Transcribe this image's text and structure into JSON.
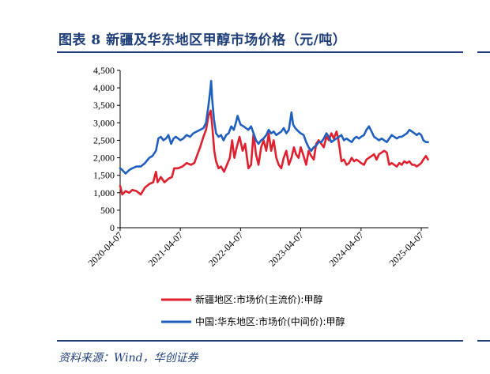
{
  "page": {
    "title": "图表 8 新疆及华东地区甲醇市场价格（元/吨）",
    "source": "资料来源：Wind，华创证券"
  },
  "chart_data": {
    "type": "line",
    "title": "",
    "xlabel": "",
    "ylabel": "",
    "ylim": [
      0,
      4500
    ],
    "yticks": [
      0,
      500,
      1000,
      1500,
      2000,
      2500,
      3000,
      3500,
      4000,
      4500
    ],
    "ytick_labels": [
      "0",
      "500",
      "1,000",
      "1,500",
      "2,000",
      "2,500",
      "3,000",
      "3,500",
      "4,000",
      "4,500"
    ],
    "xlim": [
      "2020-04-07",
      "2025-05-20"
    ],
    "xticks": [
      "2020-04-07",
      "2021-04-07",
      "2022-04-07",
      "2023-04-07",
      "2024-04-07",
      "2025-04-07"
    ],
    "grid": false,
    "legend": "bottom",
    "series": [
      {
        "name": "新疆地区:市场价(主流价):甲醇",
        "color": "#e0202e",
        "points": [
          [
            "2020-04-07",
            1200
          ],
          [
            "2020-04-20",
            950
          ],
          [
            "2020-05-10",
            1050
          ],
          [
            "2020-06-01",
            1000
          ],
          [
            "2020-06-20",
            1080
          ],
          [
            "2020-07-15",
            1050
          ],
          [
            "2020-08-10",
            950
          ],
          [
            "2020-09-05",
            1150
          ],
          [
            "2020-10-01",
            1250
          ],
          [
            "2020-10-25",
            1300
          ],
          [
            "2020-11-10",
            1600
          ],
          [
            "2020-11-20",
            1300
          ],
          [
            "2020-12-10",
            1450
          ],
          [
            "2021-01-01",
            1300
          ],
          [
            "2021-01-25",
            1400
          ],
          [
            "2021-02-15",
            1450
          ],
          [
            "2021-03-01",
            1700
          ],
          [
            "2021-03-25",
            1700
          ],
          [
            "2021-04-20",
            1750
          ],
          [
            "2021-05-15",
            1850
          ],
          [
            "2021-06-10",
            1800
          ],
          [
            "2021-07-01",
            1850
          ],
          [
            "2021-07-20",
            2100
          ],
          [
            "2021-08-05",
            2300
          ],
          [
            "2021-08-25",
            2600
          ],
          [
            "2021-09-10",
            2800
          ],
          [
            "2021-09-25",
            3200
          ],
          [
            "2021-10-08",
            3350
          ],
          [
            "2021-10-18",
            2900
          ],
          [
            "2021-10-30",
            2200
          ],
          [
            "2021-11-10",
            1900
          ],
          [
            "2021-11-25",
            1700
          ],
          [
            "2021-12-10",
            1750
          ],
          [
            "2021-12-28",
            1600
          ],
          [
            "2022-01-15",
            1800
          ],
          [
            "2022-02-01",
            2000
          ],
          [
            "2022-02-15",
            2500
          ],
          [
            "2022-03-01",
            2000
          ],
          [
            "2022-03-15",
            2300
          ],
          [
            "2022-04-01",
            2600
          ],
          [
            "2022-04-20",
            2200
          ],
          [
            "2022-05-05",
            2400
          ],
          [
            "2022-05-25",
            1700
          ],
          [
            "2022-06-10",
            1800
          ],
          [
            "2022-06-25",
            2700
          ],
          [
            "2022-07-10",
            2100
          ],
          [
            "2022-07-25",
            1800
          ],
          [
            "2022-08-10",
            2300
          ],
          [
            "2022-08-25",
            2500
          ],
          [
            "2022-09-10",
            2200
          ],
          [
            "2022-09-25",
            2700
          ],
          [
            "2022-10-10",
            2200
          ],
          [
            "2022-10-25",
            2500
          ],
          [
            "2022-11-10",
            2000
          ],
          [
            "2022-11-25",
            1800
          ],
          [
            "2022-12-10",
            1700
          ],
          [
            "2022-12-25",
            2000
          ],
          [
            "2023-01-10",
            2200
          ],
          [
            "2023-01-25",
            1800
          ],
          [
            "2023-02-10",
            2000
          ],
          [
            "2023-02-25",
            2300
          ],
          [
            "2023-03-10",
            2100
          ],
          [
            "2023-03-25",
            2000
          ],
          [
            "2023-04-07",
            2300
          ],
          [
            "2023-04-25",
            2050
          ],
          [
            "2023-05-10",
            1800
          ],
          [
            "2023-05-25",
            2200
          ],
          [
            "2023-06-10",
            2050
          ],
          [
            "2023-06-25",
            1950
          ],
          [
            "2023-07-10",
            2400
          ],
          [
            "2023-07-25",
            2500
          ],
          [
            "2023-08-10",
            2400
          ],
          [
            "2023-08-25",
            2300
          ],
          [
            "2023-09-10",
            2600
          ],
          [
            "2023-09-25",
            2500
          ],
          [
            "2023-10-10",
            2700
          ],
          [
            "2023-10-25",
            2550
          ],
          [
            "2023-11-10",
            2750
          ],
          [
            "2023-11-20",
            2550
          ],
          [
            "2023-12-01",
            2200
          ],
          [
            "2023-12-10",
            1900
          ],
          [
            "2023-12-25",
            1950
          ],
          [
            "2024-01-10",
            1800
          ],
          [
            "2024-01-25",
            1850
          ],
          [
            "2024-02-10",
            2000
          ],
          [
            "2024-02-25",
            1900
          ],
          [
            "2024-03-10",
            1950
          ],
          [
            "2024-03-25",
            1900
          ],
          [
            "2024-04-07",
            1850
          ],
          [
            "2024-04-25",
            1800
          ],
          [
            "2024-05-10",
            1950
          ],
          [
            "2024-05-25",
            2000
          ],
          [
            "2024-06-10",
            2050
          ],
          [
            "2024-06-25",
            2100
          ],
          [
            "2024-07-10",
            1950
          ],
          [
            "2024-07-25",
            2100
          ],
          [
            "2024-08-10",
            2150
          ],
          [
            "2024-08-25",
            2200
          ],
          [
            "2024-09-10",
            2150
          ],
          [
            "2024-09-25",
            1800
          ],
          [
            "2024-10-10",
            1850
          ],
          [
            "2024-10-25",
            1800
          ],
          [
            "2024-11-10",
            1750
          ],
          [
            "2024-11-25",
            1850
          ],
          [
            "2024-12-10",
            1800
          ],
          [
            "2024-12-25",
            1900
          ],
          [
            "2025-01-10",
            1850
          ],
          [
            "2025-01-25",
            1900
          ],
          [
            "2025-02-10",
            1800
          ],
          [
            "2025-02-25",
            1800
          ],
          [
            "2025-03-10",
            1750
          ],
          [
            "2025-03-25",
            1800
          ],
          [
            "2025-04-07",
            1850
          ],
          [
            "2025-04-20",
            1950
          ],
          [
            "2025-05-05",
            2050
          ],
          [
            "2025-05-18",
            1950
          ]
        ]
      },
      {
        "name": "中国:华东地区:市场价(中间价):甲醇",
        "color": "#1f5fbf",
        "points": [
          [
            "2020-04-07",
            1700
          ],
          [
            "2020-04-20",
            1650
          ],
          [
            "2020-05-10",
            1550
          ],
          [
            "2020-06-01",
            1650
          ],
          [
            "2020-06-20",
            1700
          ],
          [
            "2020-07-15",
            1750
          ],
          [
            "2020-08-10",
            1750
          ],
          [
            "2020-09-05",
            1850
          ],
          [
            "2020-10-01",
            2000
          ],
          [
            "2020-10-20",
            2050
          ],
          [
            "2020-11-10",
            2200
          ],
          [
            "2020-11-25",
            2550
          ],
          [
            "2020-12-10",
            2600
          ],
          [
            "2020-12-25",
            2500
          ],
          [
            "2021-01-10",
            2550
          ],
          [
            "2021-01-25",
            2650
          ],
          [
            "2021-02-10",
            2400
          ],
          [
            "2021-02-25",
            2550
          ],
          [
            "2021-03-10",
            2600
          ],
          [
            "2021-03-25",
            2550
          ],
          [
            "2021-04-07",
            2500
          ],
          [
            "2021-04-25",
            2550
          ],
          [
            "2021-05-15",
            2650
          ],
          [
            "2021-06-05",
            2600
          ],
          [
            "2021-06-25",
            2700
          ],
          [
            "2021-07-15",
            2750
          ],
          [
            "2021-08-05",
            2800
          ],
          [
            "2021-08-25",
            2850
          ],
          [
            "2021-09-10",
            3000
          ],
          [
            "2021-09-25",
            3500
          ],
          [
            "2021-10-05",
            3900
          ],
          [
            "2021-10-11",
            4200
          ],
          [
            "2021-10-17",
            3700
          ],
          [
            "2021-10-28",
            3100
          ],
          [
            "2021-11-10",
            2700
          ],
          [
            "2021-11-25",
            2600
          ],
          [
            "2021-12-10",
            2650
          ],
          [
            "2021-12-25",
            2500
          ],
          [
            "2022-01-10",
            2650
          ],
          [
            "2022-01-25",
            2700
          ],
          [
            "2022-02-10",
            2900
          ],
          [
            "2022-02-25",
            2800
          ],
          [
            "2022-03-10",
            3000
          ],
          [
            "2022-03-20",
            3200
          ],
          [
            "2022-04-07",
            2950
          ],
          [
            "2022-04-25",
            2900
          ],
          [
            "2022-05-10",
            2850
          ],
          [
            "2022-05-25",
            2800
          ],
          [
            "2022-06-10",
            2900
          ],
          [
            "2022-06-25",
            2700
          ],
          [
            "2022-07-10",
            2500
          ],
          [
            "2022-07-25",
            2400
          ],
          [
            "2022-08-10",
            2500
          ],
          [
            "2022-08-25",
            2550
          ],
          [
            "2022-09-10",
            2650
          ],
          [
            "2022-09-25",
            2800
          ],
          [
            "2022-10-10",
            2700
          ],
          [
            "2022-10-25",
            2750
          ],
          [
            "2022-11-10",
            2650
          ],
          [
            "2022-11-25",
            2700
          ],
          [
            "2022-12-10",
            2750
          ],
          [
            "2022-12-25",
            2850
          ],
          [
            "2023-01-10",
            2700
          ],
          [
            "2023-01-25",
            2800
          ],
          [
            "2023-02-10",
            3300
          ],
          [
            "2023-02-20",
            2950
          ],
          [
            "2023-03-05",
            2850
          ],
          [
            "2023-03-25",
            2750
          ],
          [
            "2023-04-07",
            2700
          ],
          [
            "2023-04-25",
            2650
          ],
          [
            "2023-05-10",
            2450
          ],
          [
            "2023-05-25",
            2300
          ],
          [
            "2023-06-10",
            2200
          ],
          [
            "2023-06-25",
            2300
          ],
          [
            "2023-07-10",
            2350
          ],
          [
            "2023-07-25",
            2450
          ],
          [
            "2023-08-10",
            2450
          ],
          [
            "2023-08-25",
            2550
          ],
          [
            "2023-09-10",
            2700
          ],
          [
            "2023-09-25",
            2600
          ],
          [
            "2023-10-10",
            2450
          ],
          [
            "2023-10-25",
            2500
          ],
          [
            "2023-11-10",
            2550
          ],
          [
            "2023-11-25",
            2600
          ],
          [
            "2023-12-10",
            2650
          ],
          [
            "2023-12-25",
            2500
          ],
          [
            "2024-01-10",
            2550
          ],
          [
            "2024-01-25",
            2500
          ],
          [
            "2024-02-10",
            2450
          ],
          [
            "2024-02-25",
            2550
          ],
          [
            "2024-03-10",
            2600
          ],
          [
            "2024-03-25",
            2550
          ],
          [
            "2024-04-07",
            2600
          ],
          [
            "2024-04-25",
            2650
          ],
          [
            "2024-05-10",
            2800
          ],
          [
            "2024-05-25",
            2900
          ],
          [
            "2024-06-10",
            2750
          ],
          [
            "2024-06-25",
            2600
          ],
          [
            "2024-07-10",
            2550
          ],
          [
            "2024-07-25",
            2500
          ],
          [
            "2024-08-10",
            2550
          ],
          [
            "2024-08-25",
            2500
          ],
          [
            "2024-09-10",
            2450
          ],
          [
            "2024-09-25",
            2550
          ],
          [
            "2024-10-10",
            2650
          ],
          [
            "2024-10-25",
            2600
          ],
          [
            "2024-11-10",
            2550
          ],
          [
            "2024-11-25",
            2600
          ],
          [
            "2024-12-10",
            2600
          ],
          [
            "2024-12-25",
            2650
          ],
          [
            "2025-01-10",
            2700
          ],
          [
            "2025-01-25",
            2800
          ],
          [
            "2025-02-10",
            2750
          ],
          [
            "2025-02-25",
            2700
          ],
          [
            "2025-03-10",
            2650
          ],
          [
            "2025-03-25",
            2700
          ],
          [
            "2025-04-07",
            2650
          ],
          [
            "2025-04-20",
            2500
          ],
          [
            "2025-05-05",
            2450
          ],
          [
            "2025-05-18",
            2450
          ]
        ]
      }
    ]
  }
}
